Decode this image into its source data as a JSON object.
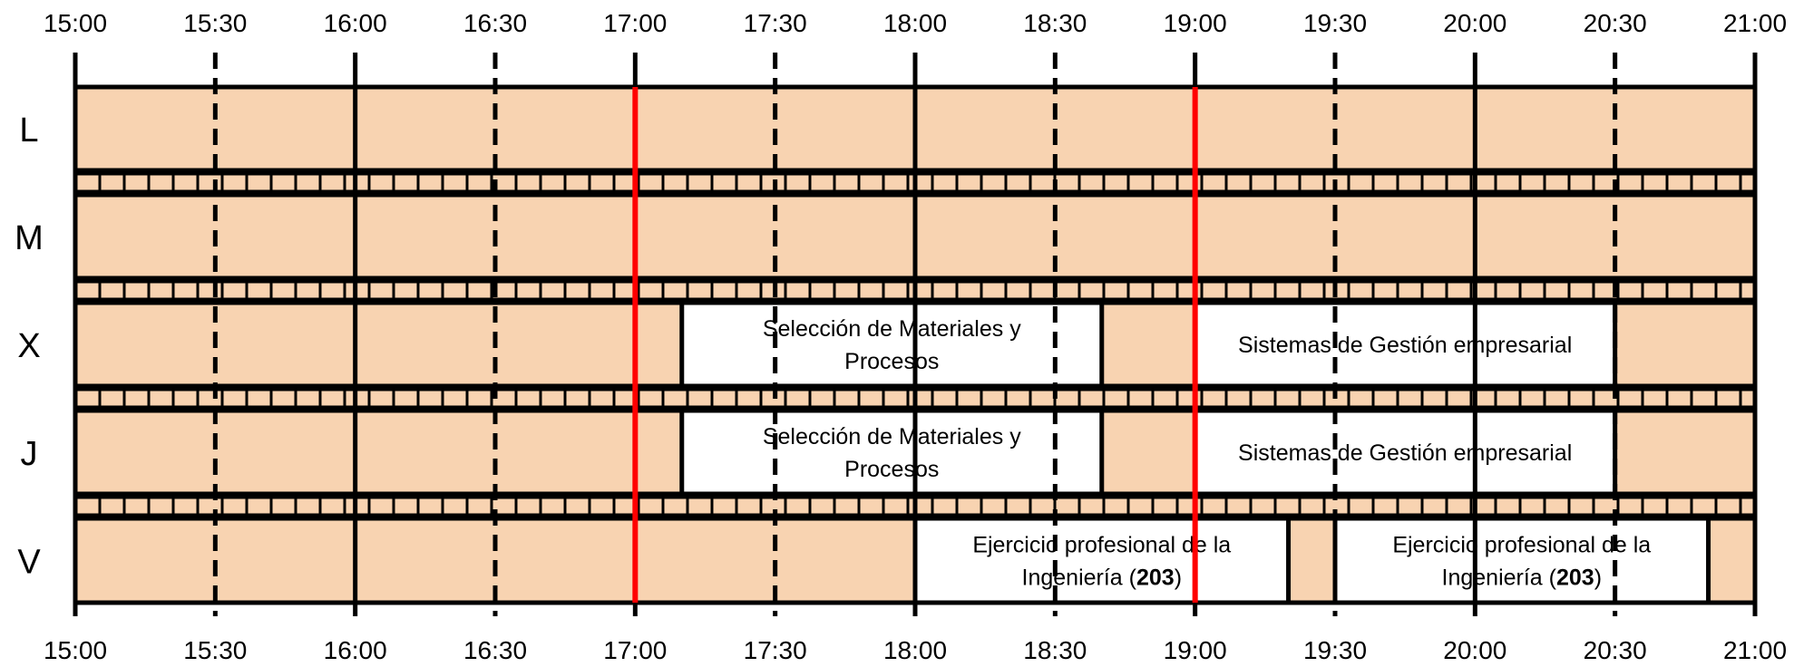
{
  "time_labels": [
    "15:00",
    "15:30",
    "16:00",
    "16:30",
    "17:00",
    "17:30",
    "18:00",
    "18:30",
    "19:00",
    "19:30",
    "20:00",
    "20:30",
    "21:00"
  ],
  "days": [
    "L",
    "M",
    "X",
    "J",
    "V"
  ],
  "events": [
    {
      "day": 2,
      "start": "17:10",
      "end": "18:40",
      "lines": [
        [
          {
            "t": "Selección de Materiales y"
          }
        ],
        [
          {
            "t": "Procesos"
          }
        ]
      ]
    },
    {
      "day": 2,
      "start": "19:00",
      "end": "20:30",
      "lines": [
        [
          {
            "t": "Sistemas de Gestión empresarial"
          }
        ]
      ]
    },
    {
      "day": 3,
      "start": "17:10",
      "end": "18:40",
      "lines": [
        [
          {
            "t": "Selección de Materiales y"
          }
        ],
        [
          {
            "t": "Procesos"
          }
        ]
      ]
    },
    {
      "day": 3,
      "start": "19:00",
      "end": "20:30",
      "lines": [
        [
          {
            "t": "Sistemas de Gestión empresarial"
          }
        ]
      ]
    },
    {
      "day": 4,
      "start": "18:00",
      "end": "19:20",
      "lines": [
        [
          {
            "t": "Ejercicio profesional de la"
          }
        ],
        [
          {
            "t": "Ingeniería ("
          },
          {
            "t": "203",
            "b": true
          },
          {
            "t": ")"
          }
        ]
      ]
    },
    {
      "day": 4,
      "start": "19:30",
      "end": "20:50",
      "lines": [
        [
          {
            "t": "Ejercicio profesional de la"
          }
        ],
        [
          {
            "t": "Ingeniería  ("
          },
          {
            "t": "203",
            "b": true
          },
          {
            "t": ")"
          }
        ]
      ]
    }
  ],
  "highlight_times": [
    "17:00",
    "19:00"
  ],
  "colors": {
    "free_slot": "#f8d3b1",
    "event_box": "#ffffff",
    "grid": "#000000",
    "highlight": "#ff0000"
  }
}
